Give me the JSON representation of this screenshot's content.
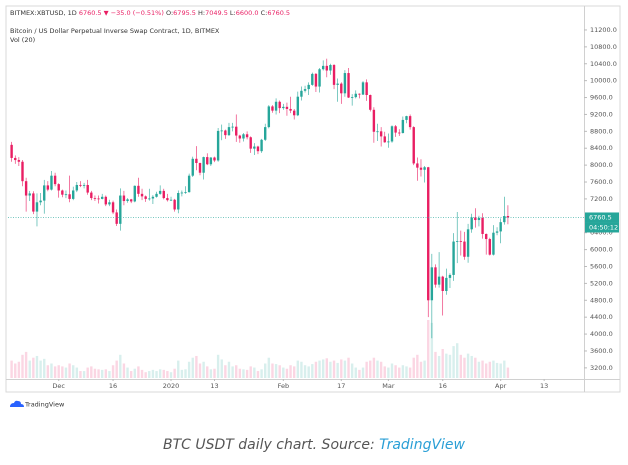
{
  "chart_data": {
    "type": "candlestick",
    "header": {
      "symbol": "BITMEX:XBTUSD, 1D",
      "last": "6760.5",
      "change": "▼ −35.0 (−0.51%)",
      "items": [
        {
          "key": "O",
          "value": "6795.5"
        },
        {
          "key": "H",
          "value": "7049.5"
        },
        {
          "key": "L",
          "value": "6600.0"
        },
        {
          "key": "C",
          "value": "6760.5"
        }
      ]
    },
    "title": "Bitcoin / US Dollar Perpetual Inverse Swap Contract, 1D, BITMEX",
    "indicator": "Vol (20)",
    "up_color": "#26a69a",
    "down_color": "#e91e63",
    "x": [
      "2019-11-18",
      "2019-11-19",
      "2019-11-20",
      "2019-11-21",
      "2019-11-22",
      "2019-11-23",
      "2019-11-24",
      "2019-11-25",
      "2019-11-26",
      "2019-11-27",
      "2019-11-28",
      "2019-11-29",
      "2019-11-30",
      "2019-12-01",
      "2019-12-02",
      "2019-12-03",
      "2019-12-04",
      "2019-12-05",
      "2019-12-06",
      "2019-12-07",
      "2019-12-08",
      "2019-12-09",
      "2019-12-10",
      "2019-12-11",
      "2019-12-12",
      "2019-12-13",
      "2019-12-14",
      "2019-12-15",
      "2019-12-16",
      "2019-12-17",
      "2019-12-18",
      "2019-12-19",
      "2019-12-20",
      "2019-12-21",
      "2019-12-22",
      "2019-12-23",
      "2019-12-24",
      "2019-12-25",
      "2019-12-26",
      "2019-12-27",
      "2019-12-28",
      "2019-12-29",
      "2019-12-30",
      "2019-12-31",
      "2020-01-01",
      "2020-01-02",
      "2020-01-03",
      "2020-01-04",
      "2020-01-05",
      "2020-01-06",
      "2020-01-07",
      "2020-01-08",
      "2020-01-09",
      "2020-01-10",
      "2020-01-11",
      "2020-01-12",
      "2020-01-13",
      "2020-01-14",
      "2020-01-15",
      "2020-01-16",
      "2020-01-17",
      "2020-01-18",
      "2020-01-19",
      "2020-01-20",
      "2020-01-21",
      "2020-01-22",
      "2020-01-23",
      "2020-01-24",
      "2020-01-25",
      "2020-01-26",
      "2020-01-27",
      "2020-01-28",
      "2020-01-29",
      "2020-01-30",
      "2020-01-31",
      "2020-02-01",
      "2020-02-02",
      "2020-02-03",
      "2020-02-04",
      "2020-02-05",
      "2020-02-06",
      "2020-02-07",
      "2020-02-08",
      "2020-02-09",
      "2020-02-10",
      "2020-02-11",
      "2020-02-12",
      "2020-02-13",
      "2020-02-14",
      "2020-02-15",
      "2020-02-16",
      "2020-02-17",
      "2020-02-18",
      "2020-02-19",
      "2020-02-20",
      "2020-02-21",
      "2020-02-22",
      "2020-02-23",
      "2020-02-24",
      "2020-02-25",
      "2020-02-26",
      "2020-02-27",
      "2020-02-28",
      "2020-02-29",
      "2020-03-01",
      "2020-03-02",
      "2020-03-03",
      "2020-03-04",
      "2020-03-05",
      "2020-03-06",
      "2020-03-07",
      "2020-03-08",
      "2020-03-09",
      "2020-03-10",
      "2020-03-11",
      "2020-03-12",
      "2020-03-13",
      "2020-03-14",
      "2020-03-15",
      "2020-03-16",
      "2020-03-17",
      "2020-03-18",
      "2020-03-19",
      "2020-03-20",
      "2020-03-21",
      "2020-03-22",
      "2020-03-23",
      "2020-03-24",
      "2020-03-25",
      "2020-03-26",
      "2020-03-27",
      "2020-03-28",
      "2020-03-29",
      "2020-03-30",
      "2020-03-31",
      "2020-04-01",
      "2020-04-02",
      "2020-04-03"
    ],
    "open": [
      8480,
      8170,
      8120,
      8080,
      7620,
      7280,
      7330,
      6900,
      7120,
      7160,
      7520,
      7420,
      7750,
      7550,
      7400,
      7300,
      7310,
      7200,
      7400,
      7530,
      7510,
      7530,
      7350,
      7220,
      7210,
      7200,
      7250,
      7070,
      7120,
      6880,
      6610,
      7280,
      7150,
      7190,
      7140,
      7510,
      7320,
      7260,
      7200,
      7210,
      7250,
      7320,
      7390,
      7220,
      7170,
      7180,
      6950,
      7340,
      7350,
      7360,
      7750,
      8150,
      8050,
      7820,
      8190,
      8020,
      8180,
      8110,
      8810,
      8820,
      8710,
      8900,
      8910,
      8700,
      8630,
      8730,
      8660,
      8390,
      8440,
      8330,
      8600,
      8900,
      9390,
      9290,
      9500,
      9350,
      9380,
      9330,
      9290,
      9180,
      9620,
      9760,
      9800,
      9900,
      10160,
      9860,
      10270,
      10350,
      10240,
      10370,
      9900,
      9930,
      9700,
      10180,
      9600,
      9610,
      9690,
      9670,
      9960,
      9660,
      9310,
      8790,
      8800,
      8680,
      8540,
      8560,
      8920,
      8770,
      8760,
      9070,
      9160,
      8900,
      8040,
      7940,
      7890,
      7950,
      4800,
      5580,
      5170,
      5360,
      5020,
      5330,
      5400,
      6190,
      6200,
      6190,
      5830,
      6480,
      6760,
      6700,
      6750,
      6370,
      6250,
      5880,
      6400,
      6430,
      6650,
      6795.5
    ],
    "high": [
      8550,
      8230,
      8190,
      8120,
      7700,
      7390,
      7380,
      7330,
      7340,
      7650,
      7620,
      7860,
      7820,
      7570,
      7420,
      7400,
      7750,
      7490,
      7600,
      7620,
      7580,
      7650,
      7390,
      7280,
      7280,
      7320,
      7280,
      7180,
      7160,
      6950,
      7450,
      7390,
      7220,
      7200,
      7520,
      7700,
      7440,
      7280,
      7440,
      7290,
      7370,
      7520,
      7440,
      7320,
      7250,
      7200,
      7400,
      7400,
      7500,
      7800,
      8200,
      8450,
      8060,
      8200,
      8280,
      8190,
      8200,
      8880,
      8960,
      8840,
      9000,
      9000,
      9200,
      8720,
      8760,
      8800,
      8680,
      8520,
      8460,
      8620,
      8980,
      9420,
      9420,
      9580,
      9530,
      9450,
      9480,
      9620,
      9330,
      9740,
      9860,
      9880,
      9960,
      10190,
      10180,
      10300,
      10480,
      10520,
      10400,
      10390,
      10050,
      9960,
      10250,
      10300,
      9680,
      9770,
      9700,
      9990,
      10030,
      9670,
      9370,
      8980,
      8900,
      8790,
      8750,
      8940,
      8950,
      8850,
      9150,
      9170,
      9200,
      8920,
      8180,
      8140,
      7980,
      7960,
      5900,
      5650,
      5940,
      5380,
      5550,
      5440,
      6390,
      6890,
      6450,
      6420,
      6610,
      6850,
      6980,
      6800,
      6860,
      6380,
      6280,
      6580,
      6530,
      6740,
      7250,
      7049.5
    ],
    "low": [
      8080,
      8030,
      7980,
      7500,
      6900,
      7150,
      6840,
      6550,
      7050,
      6850,
      7380,
      7400,
      7500,
      7230,
      7240,
      7220,
      7120,
      7170,
      7360,
      7480,
      7450,
      7300,
      7170,
      7150,
      7090,
      7190,
      7030,
      7030,
      6840,
      6560,
      6450,
      7050,
      7110,
      7100,
      7120,
      7250,
      7170,
      7130,
      7160,
      7080,
      7230,
      7300,
      7190,
      7140,
      7150,
      6900,
      6860,
      7260,
      7320,
      7350,
      7720,
      7880,
      7760,
      7660,
      8000,
      7980,
      8070,
      8080,
      8590,
      8620,
      8690,
      8800,
      8550,
      8530,
      8560,
      8610,
      8290,
      8240,
      8260,
      8290,
      8570,
      8870,
      9240,
      9200,
      9230,
      9310,
      9170,
      9230,
      9080,
      9160,
      9530,
      9720,
      9660,
      9880,
      9730,
      9720,
      10240,
      10080,
      10140,
      9800,
      9500,
      9450,
      9620,
      9590,
      9410,
      9580,
      9580,
      9660,
      9520,
      9270,
      8530,
      8570,
      8440,
      8530,
      8410,
      8530,
      8670,
      8690,
      8750,
      8990,
      8840,
      8000,
      7630,
      7730,
      7590,
      4400,
      3900,
      5100,
      5100,
      4440,
      4930,
      5090,
      5260,
      5680,
      5860,
      5760,
      5690,
      6400,
      6520,
      6550,
      6260,
      5880,
      5860,
      5860,
      6340,
      6150,
      6590,
      6600
    ],
    "close": [
      8170,
      8120,
      8080,
      7620,
      7280,
      7330,
      6900,
      7120,
      7160,
      7520,
      7420,
      7750,
      7550,
      7400,
      7300,
      7310,
      7200,
      7400,
      7530,
      7510,
      7530,
      7350,
      7220,
      7210,
      7200,
      7250,
      7070,
      7120,
      6880,
      6610,
      7280,
      7150,
      7190,
      7140,
      7510,
      7320,
      7260,
      7200,
      7210,
      7250,
      7320,
      7390,
      7220,
      7170,
      7180,
      6950,
      7340,
      7350,
      7360,
      7750,
      8150,
      8050,
      7820,
      8190,
      8020,
      8180,
      8110,
      8810,
      8820,
      8710,
      8900,
      8910,
      8700,
      8630,
      8730,
      8660,
      8390,
      8440,
      8330,
      8600,
      8900,
      9390,
      9290,
      9500,
      9350,
      9380,
      9330,
      9290,
      9180,
      9620,
      9760,
      9800,
      9900,
      10160,
      9860,
      10270,
      10350,
      10240,
      10370,
      9900,
      9930,
      9700,
      10180,
      9600,
      9610,
      9690,
      9670,
      9960,
      9660,
      9310,
      8790,
      8800,
      8680,
      8540,
      8560,
      8920,
      8770,
      8760,
      9070,
      9160,
      8900,
      8040,
      7940,
      7890,
      7950,
      4800,
      5580,
      5170,
      5360,
      5020,
      5330,
      5400,
      6190,
      6200,
      6190,
      5830,
      6480,
      6760,
      6700,
      6750,
      6370,
      6250,
      5880,
      6400,
      6430,
      6650,
      6795.5,
      6760.5
    ],
    "volume": [
      30,
      25,
      28,
      40,
      45,
      30,
      35,
      38,
      30,
      33,
      22,
      25,
      20,
      22,
      20,
      18,
      25,
      22,
      18,
      12,
      12,
      18,
      20,
      16,
      15,
      14,
      15,
      12,
      22,
      30,
      40,
      25,
      18,
      12,
      16,
      20,
      14,
      10,
      12,
      14,
      12,
      15,
      14,
      12,
      10,
      16,
      30,
      14,
      15,
      28,
      35,
      38,
      25,
      28,
      20,
      15,
      16,
      40,
      32,
      22,
      28,
      20,
      22,
      16,
      15,
      14,
      20,
      18,
      12,
      15,
      25,
      35,
      25,
      24,
      22,
      18,
      16,
      22,
      20,
      30,
      28,
      22,
      20,
      24,
      28,
      30,
      32,
      34,
      28,
      30,
      26,
      32,
      30,
      35,
      25,
      18,
      14,
      18,
      28,
      30,
      35,
      30,
      28,
      20,
      18,
      25,
      22,
      18,
      22,
      20,
      18,
      35,
      40,
      28,
      30,
      100,
      95,
      45,
      38,
      50,
      42,
      40,
      55,
      60,
      40,
      35,
      42,
      38,
      35,
      28,
      30,
      25,
      28,
      30,
      26,
      25,
      30,
      18
    ],
    "xlim": [
      "2019-11-17",
      "2020-04-24"
    ],
    "xticks": [
      {
        "value": "2019-12-01",
        "label": "Dec"
      },
      {
        "value": "2019-12-16",
        "label": "16"
      },
      {
        "value": "2020-01-01",
        "label": "2020"
      },
      {
        "value": "2020-01-13",
        "label": "13"
      },
      {
        "value": "2020-02-01",
        "label": "Feb"
      },
      {
        "value": "2020-02-17",
        "label": "17"
      },
      {
        "value": "2020-03-01",
        "label": "Mar"
      },
      {
        "value": "2020-03-16",
        "label": "16"
      },
      {
        "value": "2020-04-01",
        "label": "Apr"
      },
      {
        "value": "2020-04-13",
        "label": "13"
      }
    ],
    "ylim": [
      2960,
      11720
    ],
    "yticks": [
      {
        "value": 3200,
        "label": "3200.0"
      },
      {
        "value": 3600,
        "label": "3600.0"
      },
      {
        "value": 4000,
        "label": "4000.0"
      },
      {
        "value": 4400,
        "label": "4400.0"
      },
      {
        "value": 4800,
        "label": "4800.0"
      },
      {
        "value": 5200,
        "label": "5200.0"
      },
      {
        "value": 5600,
        "label": "5600.0"
      },
      {
        "value": 6000,
        "label": "6000.0"
      },
      {
        "value": 6400,
        "label": "6400.0"
      },
      {
        "value": 7200,
        "label": "7200.0"
      },
      {
        "value": 7600,
        "label": "7600.0"
      },
      {
        "value": 8000,
        "label": "8000.0"
      },
      {
        "value": 8400,
        "label": "8400.0"
      },
      {
        "value": 8800,
        "label": "8800.0"
      },
      {
        "value": 9200,
        "label": "9200.0"
      },
      {
        "value": 9600,
        "label": "9600.0"
      },
      {
        "value": 10000,
        "label": "10000.0"
      },
      {
        "value": 10400,
        "label": "10400.0"
      },
      {
        "value": 10800,
        "label": "10800.0"
      },
      {
        "value": 11200,
        "label": "11200.0"
      }
    ],
    "grid": false,
    "price_line": {
      "value": 6760.5,
      "label": "6760.5",
      "countdown": "04:50:12",
      "color": "#26a69a"
    }
  },
  "watermark": "TradingView",
  "caption": {
    "text": "BTC USDT daily chart. Source: ",
    "link": "TradingView"
  }
}
